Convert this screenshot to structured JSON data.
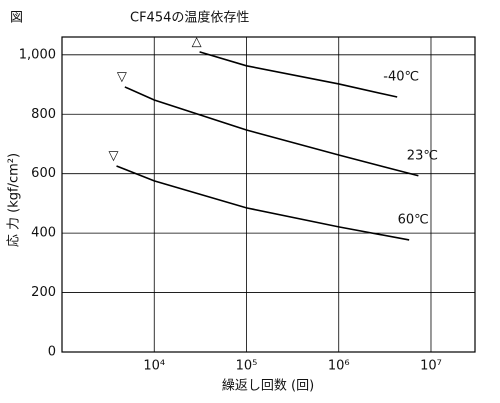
{
  "chart_data": {
    "type": "line",
    "figure_label": "図",
    "title": "CF454の温度依存性",
    "x_label": "繰返し回数 (回)",
    "y_label": "応 力 (kgf/cm²)",
    "x_log": true,
    "grid": true,
    "xlim": [
      1000,
      30000000
    ],
    "ylim": [
      0,
      1060
    ],
    "xticks": [
      {
        "value": 10000,
        "label": "10⁴"
      },
      {
        "value": 100000,
        "label": "10⁵"
      },
      {
        "value": 1000000,
        "label": "10⁶"
      },
      {
        "value": 10000000,
        "label": "10⁷"
      }
    ],
    "yticks": [
      0,
      200,
      400,
      600,
      800,
      {
        "value": 1000,
        "label": "1,000"
      }
    ],
    "series": [
      {
        "name": "-40℃",
        "color": "#000000",
        "marker": "△",
        "x": [
          31000,
          100000,
          1000000,
          4300000
        ],
        "values": [
          1010,
          963,
          902,
          858
        ]
      },
      {
        "name": "23℃",
        "color": "#000000",
        "marker": "▽",
        "x": [
          4800,
          10000,
          100000,
          1000000,
          7300000
        ],
        "values": [
          892,
          848,
          747,
          663,
          593
        ]
      },
      {
        "name": "60℃",
        "color": "#000000",
        "marker": "▽",
        "x": [
          3900,
          10000,
          100000,
          1000000,
          5800000
        ],
        "values": [
          626,
          576,
          485,
          421,
          377
        ]
      }
    ]
  }
}
